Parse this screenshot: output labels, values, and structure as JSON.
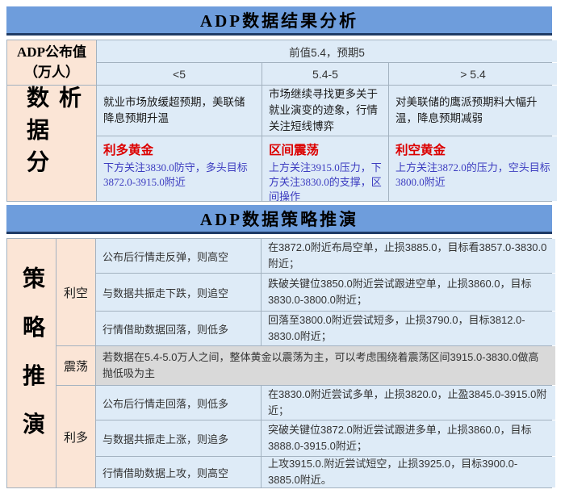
{
  "analysis_section": {
    "title": "ADP数据结果分析",
    "side_label": "数据分析",
    "row_header": {
      "label_line1": "ADP公布值",
      "label_line2": "（万人）",
      "prev_expect": "前值5.4，预期5"
    },
    "scenarios": {
      "low": "<5",
      "mid": "5.4-5",
      "high": "> 5.4"
    },
    "analysis": {
      "low": "就业市场放缓超预期，美联储降息预期升温",
      "mid": "市场继续寻找更多关于就业演变的迹象，行情关注短线博弈",
      "high": "对美联储的鹰派预期料大幅升温，降息预期减弱"
    },
    "conclusions": {
      "low": {
        "title": "利多黄金",
        "detail": "下方关注3830.0防守，多头目标3872.0-3915.0附近"
      },
      "mid": {
        "title": "区间震荡",
        "detail": "上方关注3915.0压力，下方关注3830.0的支撑，区间操作"
      },
      "high": {
        "title": "利空黄金",
        "detail": "上方关注3872.0的压力，空头目标3800.0附近"
      }
    }
  },
  "strategy_section": {
    "title": "ADP数据策略推演",
    "side_label": "策略推演",
    "groups": {
      "bearish": {
        "label": "利空",
        "rows": [
          {
            "condition": "公布后行情走反弹，则高空",
            "action": "在3872.0附近布局空单，止损3885.0，目标看3857.0-3830.0附近；"
          },
          {
            "condition": "与数据共振走下跌，则追空",
            "action": "跌破关键位3850.0附近尝试跟进空单，止损3860.0，目标3830.0-3800.0附近；"
          },
          {
            "condition": "行情借助数据回落，则低多",
            "action": "回落至3800.0附近尝试短多，止损3790.0，目标3812.0-3830.0附近；"
          }
        ]
      },
      "range": {
        "label": "震荡",
        "note": "若数据在5.4-5.0万人之间，整体黄金以震荡为主，可以考虑围绕着震荡区间3915.0-3830.0做高抛低吸为主"
      },
      "bullish": {
        "label": "利多",
        "rows": [
          {
            "condition": "公布后行情走回落，则低多",
            "action": "在3830.0附近尝试多单，止损3820.0，止盈3845.0-3915.0附近；"
          },
          {
            "condition": "与数据共振走上涨，则追多",
            "action": "突破关键位3872.0附近尝试跟进多单，止损3860.0，目标3888.0-3915.0附近；"
          },
          {
            "condition": "行情借助数据上攻，则高空",
            "action": "上攻3915.0.附近尝试短空，止损3925.0，目标3900.0-3885.0附近。"
          }
        ]
      }
    }
  },
  "colors": {
    "header_band_blue": "#6e9ddc",
    "header_underline_navy": "#1f3b66",
    "label_peach": "#fbe5d6",
    "cell_light_blue": "#deebf7",
    "range_row_gray": "#d9d9d9",
    "grid_line": "#a3b2c0",
    "accent_red": "#dc0000",
    "accent_blue": "#3c3cc0"
  }
}
